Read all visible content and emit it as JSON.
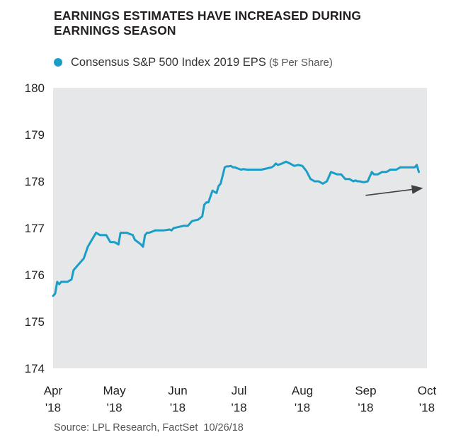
{
  "title": "EARNINGS ESTIMATES HAVE INCREASED DURING EARNINGS SEASON",
  "legend": {
    "label": "Consensus S&P 500 Index 2019 EPS",
    "unit": "($ Per Share)"
  },
  "source": {
    "text": "Source: LPL Research, FactSet",
    "date": "10/26/18"
  },
  "colors": {
    "series": "#1a9ec7",
    "plot_background": "#e6e7e8",
    "arrow": "#414042"
  },
  "chart_data": {
    "type": "line",
    "title": "EARNINGS ESTIMATES HAVE INCREASED DURING EARNINGS SEASON",
    "ylim": [
      174,
      180
    ],
    "yticks": [
      174,
      175,
      176,
      177,
      178,
      179,
      180
    ],
    "xlim": [
      "2018-04-01",
      "2018-10-01"
    ],
    "xticks": [
      {
        "date": "2018-04-01",
        "label": [
          "Apr",
          "'18"
        ]
      },
      {
        "date": "2018-05-01",
        "label": [
          "May",
          "'18"
        ]
      },
      {
        "date": "2018-06-01",
        "label": [
          "Jun",
          "'18"
        ]
      },
      {
        "date": "2018-07-01",
        "label": [
          "Jul",
          "'18"
        ]
      },
      {
        "date": "2018-08-01",
        "label": [
          "Aug",
          "'18"
        ]
      },
      {
        "date": "2018-09-01",
        "label": [
          "Sep",
          "'18"
        ]
      },
      {
        "date": "2018-10-01",
        "label": [
          "Oct",
          "'18"
        ]
      }
    ],
    "grid": false,
    "legend_position": "top-left",
    "series": [
      {
        "name": "Consensus S&P 500 Index 2019 EPS",
        "x": [
          "2018-04-01",
          "2018-04-02",
          "2018-04-03",
          "2018-04-04",
          "2018-04-05",
          "2018-04-08",
          "2018-04-10",
          "2018-04-11",
          "2018-04-12",
          "2018-04-13",
          "2018-04-16",
          "2018-04-18",
          "2018-04-20",
          "2018-04-22",
          "2018-04-24",
          "2018-04-25",
          "2018-04-27",
          "2018-04-29",
          "2018-05-01",
          "2018-05-03",
          "2018-05-04",
          "2018-05-07",
          "2018-05-10",
          "2018-05-11",
          "2018-05-14",
          "2018-05-15",
          "2018-05-16",
          "2018-05-17",
          "2018-05-18",
          "2018-05-21",
          "2018-05-22",
          "2018-05-23",
          "2018-05-24",
          "2018-05-25",
          "2018-05-28",
          "2018-05-29",
          "2018-05-30",
          "2018-06-01",
          "2018-06-04",
          "2018-06-06",
          "2018-06-08",
          "2018-06-11",
          "2018-06-13",
          "2018-06-14",
          "2018-06-15",
          "2018-06-16",
          "2018-06-18",
          "2018-06-20",
          "2018-06-21",
          "2018-06-22",
          "2018-06-24",
          "2018-06-25",
          "2018-06-26",
          "2018-06-27",
          "2018-06-28",
          "2018-06-29",
          "2018-06-30",
          "2018-07-02",
          "2018-07-03",
          "2018-07-05",
          "2018-07-06",
          "2018-07-08",
          "2018-07-10",
          "2018-07-12",
          "2018-07-15",
          "2018-07-17",
          "2018-07-18",
          "2018-07-19",
          "2018-07-20",
          "2018-07-22",
          "2018-07-24",
          "2018-07-26",
          "2018-07-28",
          "2018-07-30",
          "2018-08-01",
          "2018-08-03",
          "2018-08-05",
          "2018-08-07",
          "2018-08-09",
          "2018-08-11",
          "2018-08-13",
          "2018-08-15",
          "2018-08-18",
          "2018-08-20",
          "2018-08-22",
          "2018-08-24",
          "2018-08-26",
          "2018-08-27",
          "2018-08-28",
          "2018-08-29",
          "2018-08-31",
          "2018-09-02",
          "2018-09-04",
          "2018-09-05",
          "2018-09-07",
          "2018-09-09",
          "2018-09-11",
          "2018-09-12",
          "2018-09-13",
          "2018-09-14",
          "2018-09-16",
          "2018-09-18",
          "2018-09-20",
          "2018-09-22",
          "2018-09-23",
          "2018-09-24",
          "2018-09-25",
          "2018-09-26",
          "2018-09-27"
        ],
        "values": [
          175.55,
          175.6,
          175.85,
          175.8,
          175.85,
          175.85,
          175.9,
          176.1,
          176.15,
          176.2,
          176.35,
          176.6,
          176.75,
          176.9,
          176.85,
          176.85,
          176.85,
          176.7,
          176.7,
          176.65,
          176.9,
          176.9,
          176.85,
          176.75,
          176.65,
          176.6,
          176.85,
          176.9,
          176.9,
          176.95,
          176.95,
          176.95,
          176.95,
          176.95,
          176.97,
          176.95,
          177.0,
          177.02,
          177.05,
          177.05,
          177.15,
          177.18,
          177.25,
          177.5,
          177.55,
          177.55,
          177.8,
          177.75,
          177.9,
          177.95,
          178.3,
          178.32,
          178.32,
          178.33,
          178.3,
          178.3,
          178.28,
          178.25,
          178.26,
          178.25,
          178.25,
          178.25,
          178.25,
          178.25,
          178.28,
          178.3,
          178.33,
          178.38,
          178.35,
          178.38,
          178.42,
          178.38,
          178.33,
          178.35,
          178.33,
          178.22,
          178.05,
          178.0,
          178.0,
          177.95,
          178.0,
          178.2,
          178.15,
          178.15,
          178.05,
          178.05,
          178.0,
          178.02,
          178.0,
          178.0,
          177.98,
          178.0,
          178.2,
          178.15,
          178.15,
          178.2,
          178.2,
          178.22,
          178.25,
          178.25,
          178.25,
          178.3,
          178.3,
          178.3,
          178.3,
          178.3,
          178.3,
          178.35,
          178.2
        ]
      }
    ],
    "annotations": [
      {
        "type": "trend-arrow",
        "from": {
          "x": "2018-09-01",
          "y": 177.7
        },
        "to": {
          "x": "2018-09-28",
          "y": 177.85
        }
      }
    ]
  }
}
